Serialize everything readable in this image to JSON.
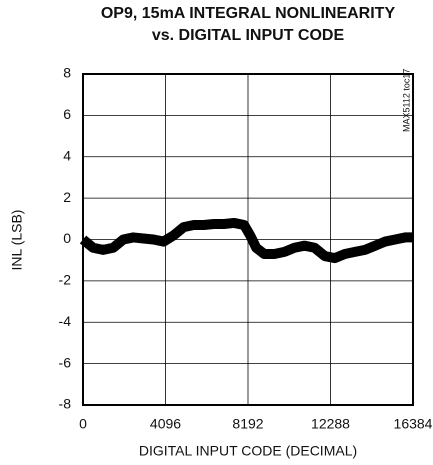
{
  "chart_data": {
    "type": "line",
    "title": "OP9, 15mA INTEGRAL NONLINEARITY",
    "subtitle": "vs. DIGITAL INPUT CODE",
    "x_label": "DIGITAL INPUT CODE (DECIMAL)",
    "y_label": "INL (LSB)",
    "annotation": "MAX5112 toc17",
    "x": [
      0,
      500,
      1000,
      1500,
      2000,
      2500,
      3000,
      3500,
      4000,
      4500,
      5000,
      5500,
      6000,
      6500,
      7000,
      7500,
      8000,
      8300,
      8600,
      9000,
      9500,
      10000,
      10500,
      11000,
      11500,
      12000,
      12500,
      13000,
      13500,
      14000,
      14500,
      15000,
      15500,
      16000,
      16384
    ],
    "values": [
      0.0,
      -0.4,
      -0.5,
      -0.4,
      0.0,
      0.1,
      0.05,
      0.0,
      -0.1,
      0.2,
      0.6,
      0.7,
      0.7,
      0.75,
      0.75,
      0.8,
      0.7,
      0.2,
      -0.4,
      -0.7,
      -0.7,
      -0.6,
      -0.4,
      -0.3,
      -0.4,
      -0.8,
      -0.9,
      -0.7,
      -0.6,
      -0.5,
      -0.3,
      -0.1,
      0.0,
      0.1,
      0.1
    ],
    "color": "#000000",
    "xlim": [
      0,
      16384
    ],
    "xticks": [
      0,
      4096,
      8192,
      12288,
      16384
    ],
    "ylim": [
      -8,
      8
    ],
    "yticks": [
      -8,
      -6,
      -4,
      -2,
      0,
      2,
      4,
      6,
      8
    ],
    "grid": true
  }
}
